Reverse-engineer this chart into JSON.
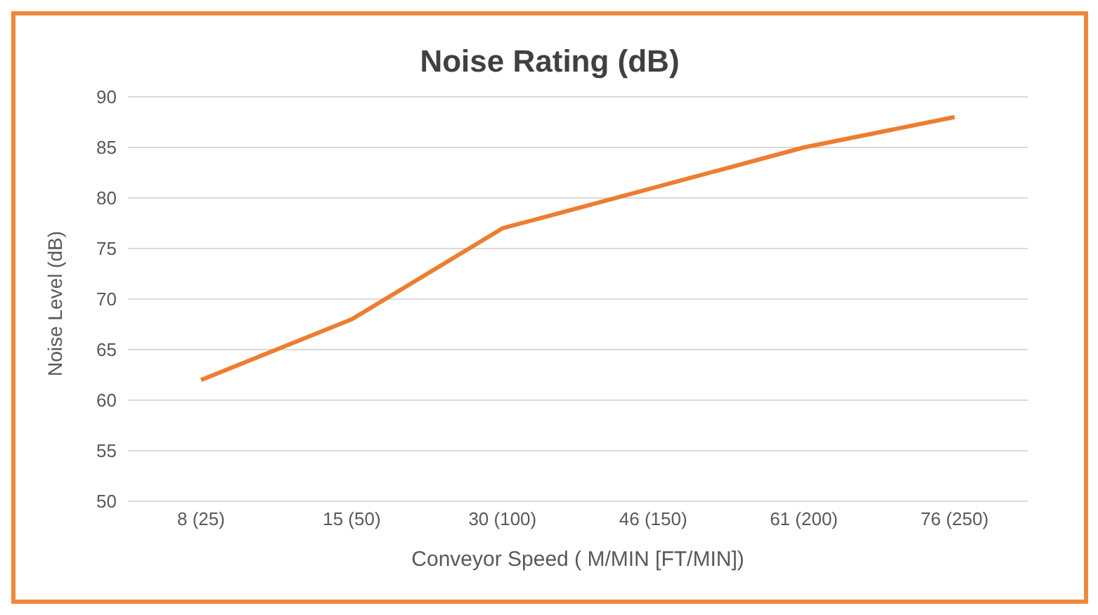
{
  "chart_data": {
    "type": "line",
    "title": "Noise Rating (dB)",
    "xlabel": "Conveyor Speed ( M/MIN [FT/MIN])",
    "ylabel": "Noise Level (dB)",
    "categories": [
      "8 (25)",
      "15 (50)",
      "30 (100)",
      "46 (150)",
      "61 (200)",
      "76 (250)"
    ],
    "series": [
      {
        "color": "#ed7d31",
        "values": [
          62,
          68,
          77,
          81,
          85,
          88
        ]
      }
    ],
    "ylim": [
      50,
      90
    ],
    "yticks": [
      50,
      55,
      60,
      65,
      70,
      75,
      80,
      85,
      90
    ],
    "grid": "y",
    "legend": false,
    "marker": "none",
    "line_style": "solid"
  }
}
